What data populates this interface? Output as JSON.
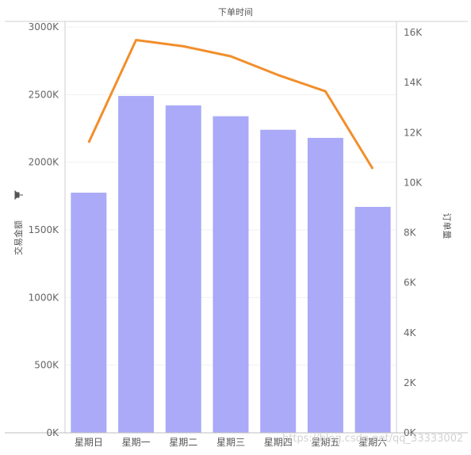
{
  "chart_data": {
    "type": "bar",
    "title": "下单时间",
    "categories": [
      "星期日",
      "星期一",
      "星期二",
      "星期三",
      "星期四",
      "星期五",
      "星期六"
    ],
    "series": [
      {
        "name": "交易金额",
        "type": "bar",
        "axis": "left",
        "color": "#aaaaf8",
        "values": [
          1775,
          2490,
          2420,
          2340,
          2240,
          2180,
          1670
        ]
      },
      {
        "name": "订单量",
        "type": "line",
        "axis": "right",
        "color": "#f28e2b",
        "values": [
          11600,
          15700,
          15450,
          15050,
          14300,
          13650,
          10550
        ]
      }
    ],
    "ylabel_left": "交易金额",
    "ylabel_right": "订单量",
    "ylim_left": [
      0,
      3000
    ],
    "ylim_right": [
      0,
      16000
    ],
    "yticks_left": [
      "0K",
      "500K",
      "1000K",
      "1500K",
      "2000K",
      "2500K",
      "3000K"
    ],
    "yticks_right": [
      "0K",
      "2K",
      "4K",
      "6K",
      "8K",
      "10K",
      "12K",
      "14K",
      "16K"
    ],
    "grid": "horizontal"
  },
  "pin_icon": "pin-icon",
  "watermark": "https://blog.csdn.net/qq_33333002"
}
